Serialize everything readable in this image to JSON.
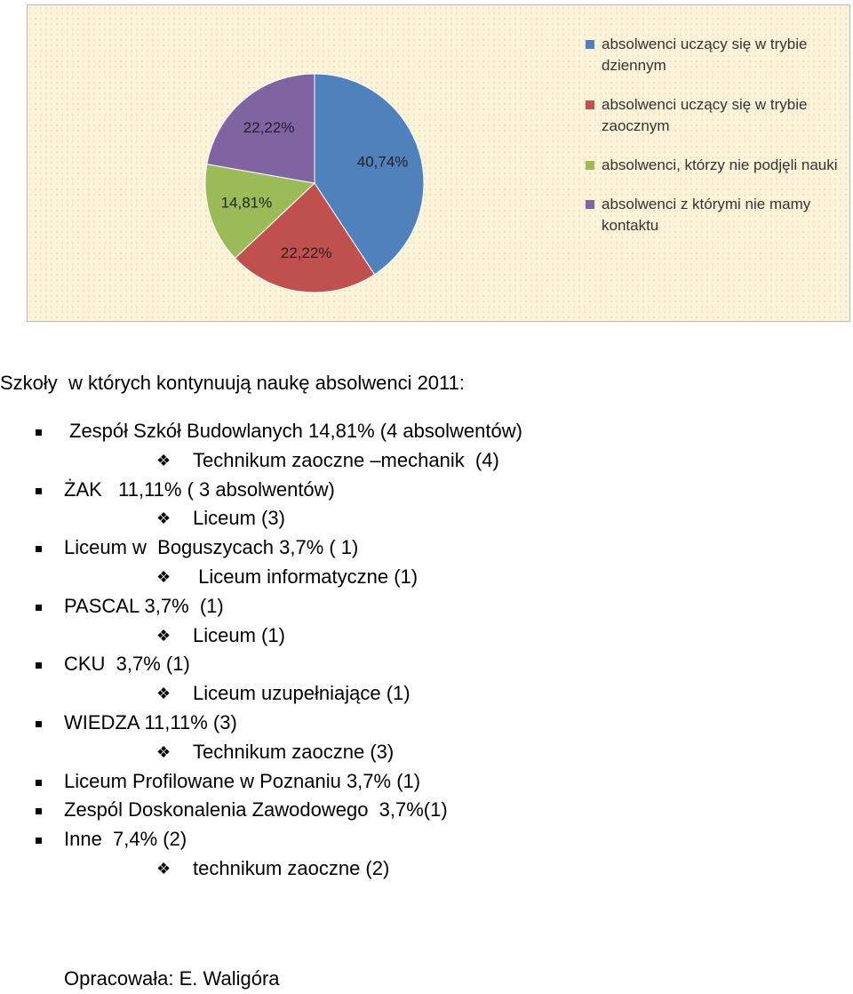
{
  "chart_data": {
    "type": "pie",
    "categories": [
      "absolwenci uczący się w trybie dziennym",
      "absolwenci uczący się w trybie zaocznym",
      "absolwenci, którzy nie podjęli nauki",
      "absolwenci z którymi nie mamy kontaktu"
    ],
    "values": [
      40.74,
      22.22,
      14.81,
      22.22
    ],
    "value_labels": [
      "40,74%",
      "22,22%",
      "14,81%",
      "22,22%"
    ],
    "colors": [
      "#4f81bd",
      "#c0504d",
      "#9bbb59",
      "#8064a2"
    ],
    "legend": "right"
  },
  "heading": "Szkoły  w których kontynuują naukę absolwenci 2011:",
  "list": [
    {
      "text": "Zespół Szkół Budowlanych 14,81% (4 absolwentów)",
      "sub": "Technikum zaoczne –mechanik  (4)"
    },
    {
      "text": "ŻAK   11,11% ( 3 absolwentów)",
      "sub": "Liceum (3)"
    },
    {
      "text": "Liceum w  Boguszycach 3,7% ( 1)",
      "sub": " Liceum informatyczne (1)"
    },
    {
      "text": "PASCAL 3,7%  (1)",
      "sub": "Liceum (1)"
    },
    {
      "text": "CKU  3,7% (1)",
      "sub": "Liceum uzupełniające (1)"
    },
    {
      "text": "WIEDZA 11,11% (3)",
      "sub": "Technikum zaoczne (3)"
    },
    {
      "text": "Liceum Profilowane w Poznaniu 3,7% (1)"
    },
    {
      "text": "Zespól Doskonalenia Zawodowego  3,7%(1)"
    },
    {
      "text": "Inne  7,4% (2)",
      "sub": "technikum zaoczne (2)"
    }
  ],
  "footer": "Opracowała: E. Waligóra"
}
